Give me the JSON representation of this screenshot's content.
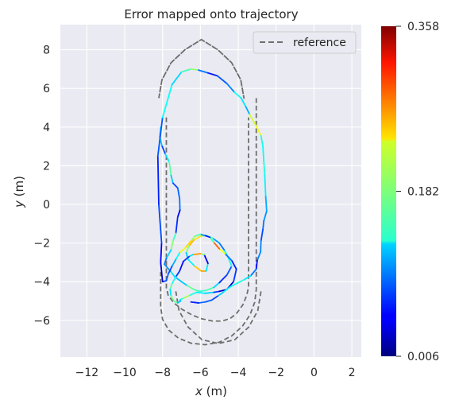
{
  "chart_data": {
    "type": "line",
    "title": "Error mapped onto trajectory",
    "xlabel": "x (m)",
    "ylabel": "y (m)",
    "xlabel_var": "x",
    "xlabel_unit": " (m)",
    "ylabel_var": "y",
    "ylabel_unit": " (m)",
    "xlim": [
      -13.4,
      2.5
    ],
    "ylim": [
      -7.9,
      9.3
    ],
    "xticks": [
      -12,
      -10,
      -8,
      -6,
      -4,
      -2,
      0,
      2
    ],
    "yticks": [
      -6,
      -4,
      -2,
      0,
      2,
      4,
      6,
      8
    ],
    "xtick_labels": [
      "−12",
      "−10",
      "−8",
      "−6",
      "−4",
      "−2",
      "0",
      "2"
    ],
    "ytick_labels": [
      "−6",
      "−4",
      "−2",
      "0",
      "2",
      "4",
      "6",
      "8"
    ],
    "grid": true,
    "legend": {
      "position": "top-right",
      "entries": [
        "reference"
      ]
    },
    "colorbar": {
      "colormap": "jet",
      "min": 0.006,
      "max": 0.358,
      "tick_values": [
        0.006,
        0.182,
        0.358
      ],
      "tick_labels": [
        "0.006",
        "0.182",
        "0.358"
      ]
    },
    "reference": {
      "name": "reference",
      "style": "dashed",
      "color": "#6e6e6e",
      "x": [
        -8.2,
        -8.2,
        -8.03,
        -7.55,
        -6.82,
        -5.95,
        -5.08,
        -4.35,
        -3.87,
        -3.7,
        -3.7,
        -3.87,
        -4.35,
        -5.08,
        -5.95,
        -6.82,
        -7.55,
        -8.03,
        -8.2,
        null,
        -7.8,
        -7.8,
        -7.7,
        -7.41,
        -6.97,
        -6.45,
        -5.93,
        -5.39,
        -4.88,
        -4.43,
        -4.07,
        -3.75,
        -3.55,
        -3.46,
        -3.46,
        null,
        -3.05,
        -3.05,
        -3.13,
        -3.38,
        -3.78,
        -4.34,
        -5.0,
        -5.75,
        -6.5,
        -7.16,
        -7.67,
        -8.0,
        -8.1,
        -8.1,
        null,
        -2.8,
        -2.8,
        -2.97,
        -3.45,
        -4.18,
        -5.05,
        -5.92,
        -6.65,
        -7.13,
        -7.3,
        -7.3
      ],
      "y": [
        5.5,
        5.5,
        6.45,
        7.33,
        8.0,
        8.53,
        8.0,
        7.33,
        6.45,
        5.5,
        5.5,
        6.45,
        7.33,
        8.0,
        8.53,
        8.0,
        7.33,
        6.45,
        5.5,
        null,
        4.5,
        -4.3,
        -4.71,
        -5.09,
        -5.43,
        -5.72,
        -5.92,
        -6.03,
        -6.04,
        -5.91,
        -5.62,
        -5.18,
        -4.69,
        -4.3,
        4.5,
        null,
        5.5,
        -4.4,
        -5.06,
        -5.71,
        -6.3,
        -6.8,
        -7.13,
        -7.26,
        -7.18,
        -6.92,
        -6.51,
        -5.95,
        -5.3,
        -3.5,
        null,
        -4.5,
        -4.5,
        -5.5,
        -6.35,
        -7.0,
        -7.2,
        -7.0,
        -6.35,
        -5.5,
        -4.5,
        -4.5
      ]
    },
    "trajectory": {
      "x": [
        -8.1,
        -8.15,
        -8.02,
        -7.85,
        -7.65,
        -7.55,
        -7.45,
        -7.2,
        -7.1,
        -7.08,
        -7.2,
        -7.3,
        -7.45,
        -7.55,
        -7.8,
        -7.9,
        -7.55,
        -7.35,
        -7.0,
        -6.7,
        -6.35,
        -6.05,
        -5.7,
        -5.3,
        -5.0,
        -4.6,
        -4.35,
        -4.55,
        -4.75,
        -5.0,
        -5.35,
        -5.7,
        -6.0,
        -6.35,
        -6.6,
        -6.75,
        -6.65,
        -6.3,
        -5.95,
        -5.7,
        -5.6,
        -5.8,
        -6.0,
        -6.4,
        -6.6,
        -6.9,
        -7.1,
        -7.3,
        -7.5,
        -7.6,
        -7.55,
        -7.4,
        -7.2,
        -7.05,
        -7.1,
        -6.9,
        -6.55,
        -6.2,
        -5.75,
        -5.3,
        -5.0,
        -4.6,
        -4.25,
        -4.1,
        -4.35,
        -4.7,
        -5.0,
        -5.3,
        -5.5,
        -5.8,
        -6.0,
        -6.3,
        -6.5,
        -6.8,
        -7.1,
        -7.3,
        -7.5,
        -7.7,
        -7.8,
        -8.0,
        -8.1,
        -8.05,
        -8.2,
        -8.25,
        -8.0,
        -7.5,
        -7.0,
        -6.5,
        -6.1,
        -5.6,
        -5.1,
        -4.6,
        -4.2,
        -3.85,
        -3.6,
        -3.4,
        -3.05,
        -2.8,
        -2.7,
        -2.65,
        -2.6,
        -2.55,
        -2.5,
        -2.65,
        -2.7,
        -2.8,
        -2.82,
        -3.0,
        -3.05,
        -3.35,
        -3.7,
        -4.0,
        -4.4,
        -4.8,
        -5.1,
        -5.4,
        -5.75,
        -6.1,
        -6.5
      ],
      "y": [
        4.0,
        3.5,
        3.0,
        2.6,
        2.2,
        1.5,
        1.1,
        0.85,
        0.3,
        -0.3,
        -0.65,
        -1.5,
        -1.9,
        -2.35,
        -2.8,
        -3.1,
        -3.5,
        -3.75,
        -4.0,
        -4.2,
        -4.4,
        -4.5,
        -4.45,
        -4.3,
        -4.05,
        -3.65,
        -3.2,
        -2.7,
        -2.35,
        -2.0,
        -1.75,
        -1.6,
        -1.65,
        -1.85,
        -2.15,
        -2.5,
        -2.85,
        -3.2,
        -3.45,
        -3.45,
        -3.05,
        -2.6,
        -2.55,
        -2.6,
        -2.7,
        -2.95,
        -3.45,
        -3.75,
        -4.1,
        -4.4,
        -4.75,
        -5.0,
        -5.1,
        -5.0,
        -4.95,
        -4.85,
        -4.7,
        -4.55,
        -4.6,
        -4.55,
        -4.5,
        -4.4,
        -4.0,
        -3.35,
        -2.9,
        -2.55,
        -2.3,
        -1.95,
        -1.7,
        -1.6,
        -1.55,
        -1.65,
        -1.9,
        -2.25,
        -2.5,
        -2.85,
        -3.2,
        -3.6,
        -3.95,
        -4.0,
        -3.0,
        -2.0,
        0.0,
        2.5,
        4.5,
        6.2,
        6.85,
        7.0,
        6.95,
        6.8,
        6.65,
        6.25,
        5.8,
        5.5,
        5.05,
        4.65,
        4.05,
        3.55,
        3.0,
        2.2,
        1.5,
        0.4,
        -0.35,
        -0.85,
        -1.3,
        -1.9,
        -2.45,
        -2.9,
        -3.35,
        -3.7,
        -3.9,
        -4.05,
        -4.25,
        -4.55,
        -4.75,
        -4.95,
        -5.05,
        -5.1,
        -5.05
      ],
      "error": [
        0.11,
        0.15,
        0.09,
        0.06,
        0.2,
        0.14,
        0.1,
        0.05,
        0.12,
        0.06,
        0.03,
        0.1,
        0.22,
        0.15,
        0.1,
        0.08,
        0.12,
        0.14,
        0.09,
        0.15,
        0.2,
        0.13,
        0.18,
        0.15,
        0.1,
        0.03,
        0.13,
        0.16,
        0.12,
        0.06,
        0.15,
        0.18,
        0.2,
        0.27,
        0.23,
        0.14,
        0.1,
        0.17,
        0.32,
        0.2,
        0.06,
        0.03,
        0.34,
        0.18,
        0.08,
        0.06,
        0.05,
        0.09,
        0.2,
        0.14,
        0.12,
        0.24,
        0.1,
        0.14,
        0.08,
        0.21,
        0.18,
        0.12,
        0.15,
        0.1,
        0.04,
        0.02,
        0.05,
        0.09,
        0.03,
        0.15,
        0.3,
        0.26,
        0.07,
        0.05,
        0.15,
        0.18,
        0.2,
        0.28,
        0.16,
        0.12,
        0.1,
        0.05,
        0.12,
        0.03,
        0.04,
        0.06,
        0.09,
        0.03,
        0.13,
        0.15,
        0.1,
        0.22,
        0.16,
        0.02,
        0.1,
        0.06,
        0.13,
        0.16,
        0.1,
        0.12,
        0.3,
        0.14,
        0.15,
        0.13,
        0.17,
        0.1,
        0.12,
        0.08,
        0.1,
        0.05,
        0.14,
        0.05,
        0.06,
        0.12,
        0.14,
        0.16,
        0.13,
        0.15,
        0.09,
        0.06,
        0.1,
        0.07,
        0.05
      ]
    }
  }
}
